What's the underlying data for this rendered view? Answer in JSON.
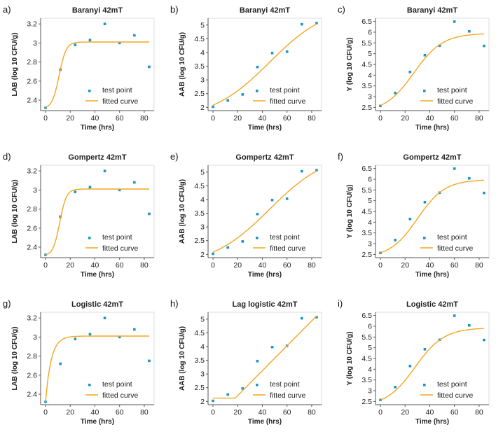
{
  "colors": {
    "points": "#1a95c9",
    "curve": "#f4a622",
    "axis": "#555555",
    "frame": "#dddddd"
  },
  "chart_data": [
    {
      "panel_label": "a)",
      "type": "scatter",
      "title": "Baranyi 42mT",
      "xlabel": "Time (hrs)",
      "ylabel": "LAB (log 10 CFU/g)",
      "xlim": [
        -4,
        88
      ],
      "ylim": [
        2.29,
        3.26
      ],
      "xticks": [
        0,
        20,
        40,
        60,
        80
      ],
      "yticks": [
        2.4,
        2.6,
        2.8,
        3,
        3.2
      ],
      "series": [
        {
          "name": "test point",
          "kind": "points",
          "x": [
            0,
            12,
            24,
            36,
            48,
            60,
            72,
            84
          ],
          "y": [
            2.32,
            2.72,
            2.98,
            3.03,
            3.2,
            3.0,
            3.08,
            2.75
          ]
        },
        {
          "name": "fitted curve",
          "kind": "curve",
          "model": "sigmoid",
          "params": {
            "y0": 2.31,
            "ymax": 3.01,
            "mu": 0.35,
            "tm": 11
          },
          "x_range": [
            0,
            84
          ]
        }
      ],
      "legend": [
        "test point",
        "fitted curve"
      ]
    },
    {
      "panel_label": "b)",
      "type": "scatter",
      "title": "Baranyi 42mT",
      "xlabel": "Time (hrs)",
      "ylabel": "AAB (log 10 CFU/g)",
      "xlim": [
        -4,
        88
      ],
      "ylim": [
        1.88,
        5.25
      ],
      "xticks": [
        0,
        20,
        40,
        60,
        80
      ],
      "yticks": [
        2,
        2.5,
        3,
        3.5,
        4,
        4.5,
        5
      ],
      "series": [
        {
          "name": "test point",
          "kind": "points",
          "x": [
            0,
            12,
            24,
            36,
            48,
            60,
            72,
            84
          ],
          "y": [
            2.02,
            2.25,
            2.47,
            3.47,
            3.98,
            4.03,
            5.03,
            5.07
          ]
        },
        {
          "name": "fitted curve",
          "kind": "curve",
          "model": "sigmoid",
          "params": {
            "y0": 1.55,
            "ymax": 5.75,
            "mu": 0.042,
            "tm": 46
          },
          "x_range": [
            0,
            84
          ]
        }
      ],
      "legend": [
        "test point",
        "fitted curve"
      ]
    },
    {
      "panel_label": "c)",
      "type": "scatter",
      "title": "Baranyi 42mT",
      "xlabel": "Time (hrs)",
      "ylabel": "Y (log 10 CFU/g)",
      "xlim": [
        -4,
        88
      ],
      "ylim": [
        2.35,
        6.65
      ],
      "xticks": [
        0,
        20,
        40,
        60,
        80
      ],
      "yticks": [
        2.5,
        3,
        3.5,
        4,
        4.5,
        5,
        5.5,
        6,
        6.5
      ],
      "series": [
        {
          "name": "test point",
          "kind": "points",
          "x": [
            0,
            12,
            24,
            36,
            48,
            60,
            72,
            84
          ],
          "y": [
            2.57,
            3.17,
            4.15,
            4.93,
            5.37,
            6.49,
            6.04,
            5.36
          ]
        },
        {
          "name": "fitted curve",
          "kind": "curve",
          "model": "sigmoid",
          "params": {
            "y0": 2.25,
            "ymax": 5.95,
            "mu": 0.085,
            "tm": 27
          },
          "x_range": [
            0,
            84
          ]
        }
      ],
      "legend": [
        "test point",
        "fitted curve"
      ]
    },
    {
      "panel_label": "d)",
      "type": "scatter",
      "title": "Gompertz 42mT",
      "xlabel": "Time (hrs)",
      "ylabel": "LAB (log 10 CFU/g)",
      "xlim": [
        -4,
        88
      ],
      "ylim": [
        2.29,
        3.26
      ],
      "xticks": [
        0,
        20,
        40,
        60,
        80
      ],
      "yticks": [
        2.4,
        2.6,
        2.8,
        3,
        3.2
      ],
      "series": [
        {
          "name": "test point",
          "kind": "points",
          "x": [
            0,
            12,
            24,
            36,
            48,
            60,
            72,
            84
          ],
          "y": [
            2.32,
            2.72,
            2.98,
            3.03,
            3.2,
            3.0,
            3.08,
            2.75
          ]
        },
        {
          "name": "fitted curve",
          "kind": "curve",
          "model": "sigmoid",
          "params": {
            "y0": 2.31,
            "ymax": 3.01,
            "mu": 0.37,
            "tm": 11.5
          },
          "x_range": [
            0,
            84
          ]
        }
      ],
      "legend": [
        "test point",
        "fitted curve"
      ]
    },
    {
      "panel_label": "e)",
      "type": "scatter",
      "title": "Gompertz 42mT",
      "xlabel": "Time (hrs)",
      "ylabel": "AAB (log 10 CFU/g)",
      "xlim": [
        -4,
        88
      ],
      "ylim": [
        1.88,
        5.25
      ],
      "xticks": [
        0,
        20,
        40,
        60,
        80
      ],
      "yticks": [
        2,
        2.5,
        3,
        3.5,
        4,
        4.5,
        5
      ],
      "series": [
        {
          "name": "test point",
          "kind": "points",
          "x": [
            0,
            12,
            24,
            36,
            48,
            60,
            72,
            84
          ],
          "y": [
            2.02,
            2.25,
            2.47,
            3.47,
            3.98,
            4.03,
            5.03,
            5.07
          ]
        },
        {
          "name": "fitted curve",
          "kind": "curve",
          "model": "sigmoid",
          "params": {
            "y0": 1.55,
            "ymax": 5.75,
            "mu": 0.042,
            "tm": 46
          },
          "x_range": [
            0,
            84
          ]
        }
      ],
      "legend": [
        "test point",
        "fitted curve"
      ]
    },
    {
      "panel_label": "f)",
      "type": "scatter",
      "title": "Gompertz 42mT",
      "xlabel": "Time (hrs)",
      "ylabel": "Y (log 10 CFU/g)",
      "xlim": [
        -4,
        88
      ],
      "ylim": [
        2.35,
        6.65
      ],
      "xticks": [
        0,
        20,
        40,
        60,
        80
      ],
      "yticks": [
        2.5,
        3,
        3.5,
        4,
        4.5,
        5,
        5.5,
        6,
        6.5
      ],
      "series": [
        {
          "name": "test point",
          "kind": "points",
          "x": [
            0,
            12,
            24,
            36,
            48,
            60,
            72,
            84
          ],
          "y": [
            2.57,
            3.17,
            4.15,
            4.93,
            5.37,
            6.49,
            6.04,
            5.36
          ]
        },
        {
          "name": "fitted curve",
          "kind": "curve",
          "model": "sigmoid",
          "params": {
            "y0": 2.35,
            "ymax": 5.98,
            "mu": 0.09,
            "tm": 30
          },
          "x_range": [
            0,
            84
          ]
        }
      ],
      "legend": [
        "test point",
        "fitted curve"
      ]
    },
    {
      "panel_label": "g)",
      "type": "scatter",
      "title": "Logistic 42mT",
      "xlabel": "Time (hrs)",
      "ylabel": "LAB (log 10 CFU/g)",
      "xlim": [
        -4,
        88
      ],
      "ylim": [
        2.29,
        3.26
      ],
      "xticks": [
        0,
        20,
        40,
        60,
        80
      ],
      "yticks": [
        2.4,
        2.6,
        2.8,
        3,
        3.2
      ],
      "series": [
        {
          "name": "test point",
          "kind": "points",
          "x": [
            0,
            12,
            24,
            36,
            48,
            60,
            72,
            84
          ],
          "y": [
            2.32,
            2.72,
            2.98,
            3.03,
            3.2,
            3.0,
            3.08,
            2.75
          ]
        },
        {
          "name": "fitted curve",
          "kind": "curve",
          "model": "logistic",
          "params": {
            "y0": 2.32,
            "ymax": 3.01,
            "r": 0.22
          },
          "x_range": [
            0,
            84
          ]
        }
      ],
      "legend": [
        "test point",
        "fitted curve"
      ]
    },
    {
      "panel_label": "h)",
      "type": "scatter",
      "title": "Lag logistic 42mT",
      "xlabel": "Time (hrs)",
      "ylabel": "AAB (log 10 CFU/g)",
      "xlim": [
        -4,
        88
      ],
      "ylim": [
        1.88,
        5.25
      ],
      "xticks": [
        0,
        20,
        40,
        60,
        80
      ],
      "yticks": [
        2,
        2.5,
        3,
        3.5,
        4,
        4.5,
        5
      ],
      "series": [
        {
          "name": "test point",
          "kind": "points",
          "x": [
            0,
            12,
            24,
            36,
            48,
            60,
            72,
            84
          ],
          "y": [
            2.02,
            2.25,
            2.47,
            3.47,
            3.98,
            4.03,
            5.03,
            5.07
          ]
        },
        {
          "name": "fitted curve",
          "kind": "curve",
          "model": "polyline",
          "x": [
            0,
            18,
            84
          ],
          "y": [
            2.12,
            2.12,
            5.12
          ]
        }
      ],
      "legend": [
        "test point",
        "fitted curve"
      ]
    },
    {
      "panel_label": "i)",
      "type": "scatter",
      "title": "Logistic 42mT",
      "xlabel": "Time (hrs)",
      "ylabel": "Y (log 10 CFU/g)",
      "xlim": [
        -4,
        88
      ],
      "ylim": [
        2.35,
        6.65
      ],
      "xticks": [
        0,
        20,
        40,
        60,
        80
      ],
      "yticks": [
        2.5,
        3,
        3.5,
        4,
        4.5,
        5,
        5.5,
        6,
        6.5
      ],
      "series": [
        {
          "name": "test point",
          "kind": "points",
          "x": [
            0,
            12,
            24,
            36,
            48,
            60,
            72,
            84
          ],
          "y": [
            2.57,
            3.17,
            4.15,
            4.93,
            5.37,
            6.49,
            6.04,
            5.36
          ]
        },
        {
          "name": "fitted curve",
          "kind": "curve",
          "model": "sigmoid",
          "params": {
            "y0": 2.25,
            "ymax": 5.93,
            "mu": 0.085,
            "tm": 28
          },
          "x_range": [
            0,
            84
          ]
        }
      ],
      "legend": [
        "test point",
        "fitted curve"
      ]
    }
  ]
}
